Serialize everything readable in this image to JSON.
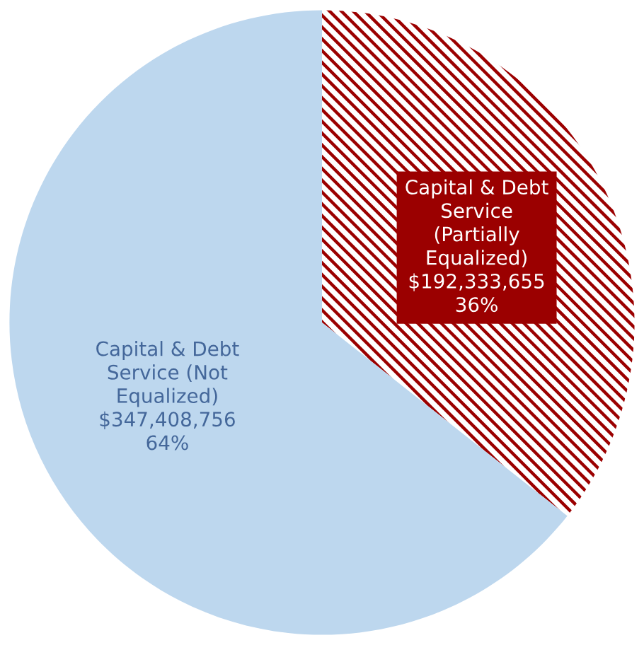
{
  "chart_data": {
    "type": "pie",
    "categories": [
      "Capital & Debt\nService\n(Partially\nEqualized)",
      "Capital & Debt\nService (Not\nEqualized)"
    ],
    "values": [
      192333655,
      347408756
    ],
    "value_labels": [
      "$192,333,655\n36%",
      "$347,408,756\n64%"
    ],
    "colors": [
      "#9b0000",
      "#bdd7ee"
    ]
  }
}
